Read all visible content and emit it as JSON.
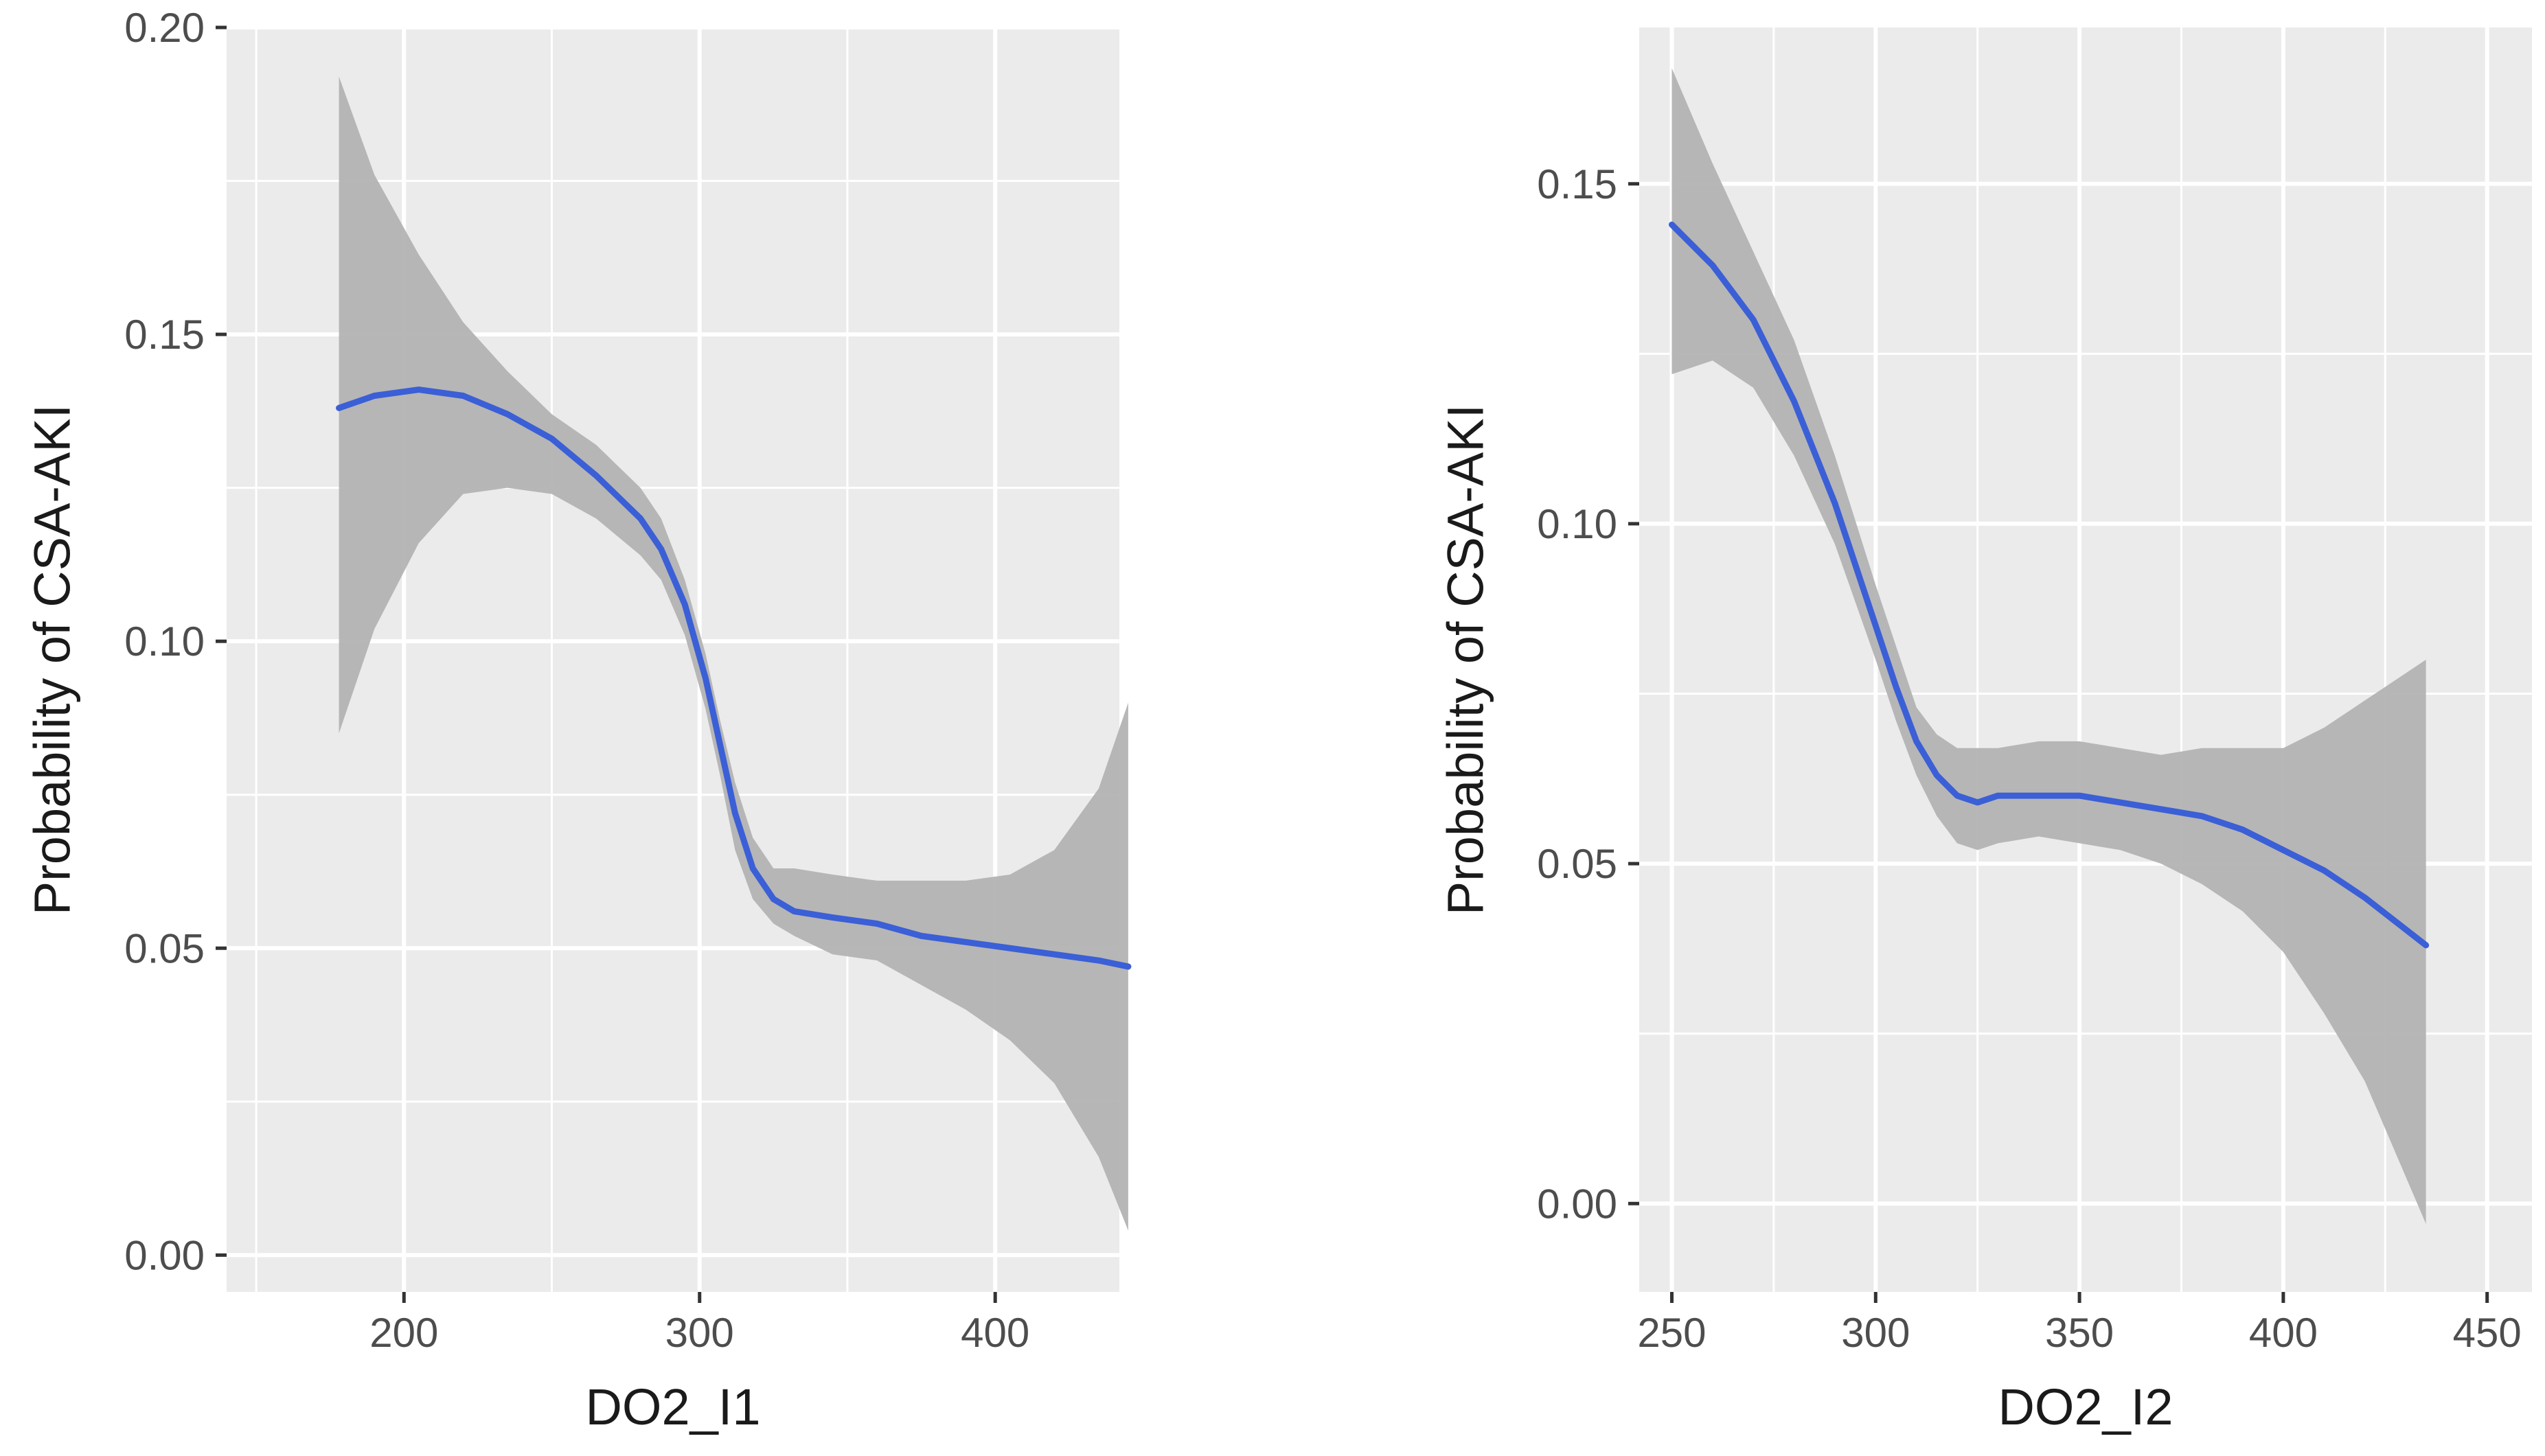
{
  "chart_data": [
    {
      "type": "line",
      "subtype": "smooth-with-confidence-band",
      "xlabel": "DO2_I1",
      "ylabel": "Probability of CSA-AKI",
      "xlim": [
        140,
        442
      ],
      "ylim": [
        -0.006,
        0.2
      ],
      "xticks": [
        200,
        300,
        400
      ],
      "xtick_labels": [
        "200",
        "300",
        "400"
      ],
      "yticks": [
        0.0,
        0.05,
        0.1,
        0.15,
        0.2
      ],
      "ytick_labels": [
        "0.00",
        "0.05",
        "0.10",
        "0.15",
        "0.20"
      ],
      "series": [
        {
          "x": [
            178,
            190,
            205,
            220,
            235,
            250,
            265,
            280,
            287,
            295,
            302,
            307,
            312,
            318,
            325,
            332,
            345,
            360,
            375,
            390,
            405,
            420,
            435,
            445
          ],
          "y": [
            0.138,
            0.14,
            0.141,
            0.14,
            0.137,
            0.133,
            0.127,
            0.12,
            0.115,
            0.106,
            0.094,
            0.083,
            0.072,
            0.063,
            0.058,
            0.056,
            0.055,
            0.054,
            0.052,
            0.051,
            0.05,
            0.049,
            0.048,
            0.047
          ],
          "lower": [
            0.085,
            0.102,
            0.116,
            0.124,
            0.125,
            0.124,
            0.12,
            0.114,
            0.11,
            0.101,
            0.089,
            0.078,
            0.066,
            0.058,
            0.054,
            0.052,
            0.049,
            0.048,
            0.044,
            0.04,
            0.035,
            0.028,
            0.016,
            0.004
          ],
          "upper": [
            0.192,
            0.176,
            0.163,
            0.152,
            0.144,
            0.137,
            0.132,
            0.125,
            0.12,
            0.11,
            0.098,
            0.087,
            0.077,
            0.068,
            0.063,
            0.063,
            0.062,
            0.061,
            0.061,
            0.061,
            0.062,
            0.066,
            0.076,
            0.09
          ]
        }
      ],
      "colors": {
        "line": "#3b5fd6",
        "band": "#b3b3b3",
        "panel": "#ebebeb",
        "grid": "#ffffff"
      },
      "grid": true
    },
    {
      "type": "line",
      "subtype": "smooth-with-confidence-band",
      "xlabel": "DO2_I2",
      "ylabel": "Probability of CSA-AKI",
      "xlim": [
        242,
        461
      ],
      "ylim": [
        -0.013,
        0.173
      ],
      "xticks": [
        250,
        300,
        350,
        400,
        450
      ],
      "xtick_labels": [
        "250",
        "300",
        "350",
        "400",
        "450"
      ],
      "yticks": [
        0.0,
        0.05,
        0.1,
        0.15
      ],
      "ytick_labels": [
        "0.00",
        "0.05",
        "0.10",
        "0.15"
      ],
      "series": [
        {
          "x": [
            250,
            260,
            270,
            280,
            290,
            300,
            305,
            310,
            315,
            320,
            325,
            330,
            340,
            350,
            360,
            370,
            380,
            390,
            400,
            410,
            420,
            435
          ],
          "y": [
            0.144,
            0.138,
            0.13,
            0.118,
            0.103,
            0.085,
            0.076,
            0.068,
            0.063,
            0.06,
            0.059,
            0.06,
            0.06,
            0.06,
            0.059,
            0.058,
            0.057,
            0.055,
            0.052,
            0.049,
            0.045,
            0.038
          ],
          "lower": [
            0.122,
            0.124,
            0.12,
            0.11,
            0.097,
            0.08,
            0.071,
            0.063,
            0.057,
            0.053,
            0.052,
            0.053,
            0.054,
            0.053,
            0.052,
            0.05,
            0.047,
            0.043,
            0.037,
            0.028,
            0.018,
            -0.003
          ],
          "upper": [
            0.167,
            0.153,
            0.14,
            0.127,
            0.11,
            0.091,
            0.082,
            0.073,
            0.069,
            0.067,
            0.067,
            0.067,
            0.068,
            0.068,
            0.067,
            0.066,
            0.067,
            0.067,
            0.067,
            0.07,
            0.074,
            0.08
          ]
        }
      ],
      "colors": {
        "line": "#3b5fd6",
        "band": "#b3b3b3",
        "panel": "#ebebeb",
        "grid": "#ffffff"
      },
      "grid": true
    }
  ]
}
